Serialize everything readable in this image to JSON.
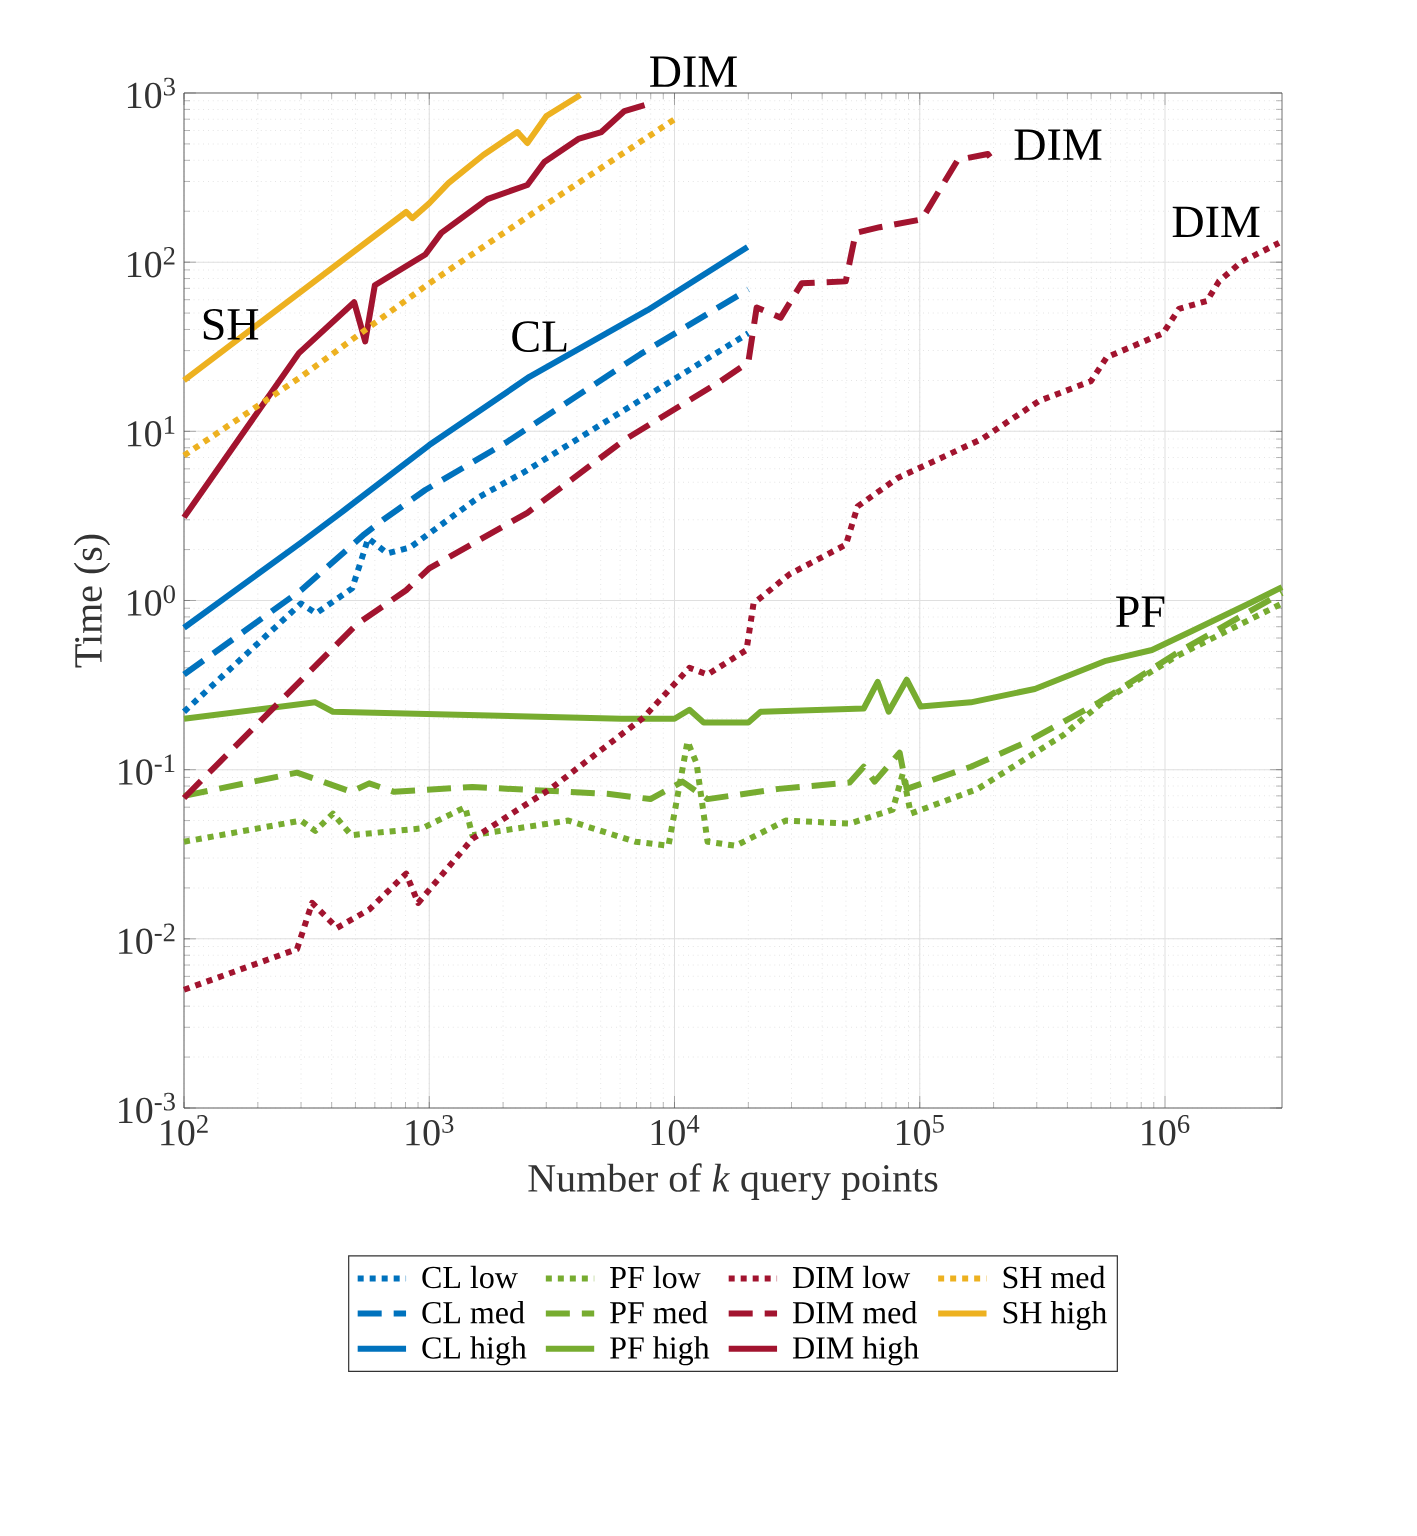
{
  "chart_data": {
    "type": "line",
    "xlabel": "Number of *k* query points",
    "ylabel": "Time (s)",
    "log": "xy",
    "grid": true,
    "legend": "bottom",
    "marker": "none",
    "xlim": [
      100,
      3000000
    ],
    "ylim": [
      0.001,
      1000
    ],
    "xticks": [
      {
        "value": 100,
        "label": "10$^{2}$"
      },
      {
        "value": 1000,
        "label": "10$^{3}$"
      },
      {
        "value": 10000,
        "label": "10$^{4}$"
      },
      {
        "value": 100000,
        "label": "10$^{5}$"
      },
      {
        "value": 1000000,
        "label": "10$^{6}$"
      }
    ],
    "yticks": [
      {
        "value": 0.001,
        "label": "10$^{-3}$"
      },
      {
        "value": 0.01,
        "label": "10$^{-2}$"
      },
      {
        "value": 0.1,
        "label": "10$^{-1}$"
      },
      {
        "value": 1,
        "label": "10$^{0}$"
      },
      {
        "value": 10,
        "label": "10$^{1}$"
      },
      {
        "value": 100,
        "label": "10$^{2}$"
      },
      {
        "value": 1000,
        "label": "10$^{3}$"
      }
    ],
    "annotations": [
      "SH",
      "CL",
      "DIM",
      "DIM",
      "DIM",
      "PF"
    ],
    "series": [
      {
        "name": "CL low",
        "color": "#0072bd",
        "line_style": "dotted",
        "x": [
          100,
          300,
          346,
          485,
          564,
          674,
          836,
          1600,
          2466,
          20000
        ],
        "values": [
          0.22,
          0.96,
          0.84,
          1.18,
          2.33,
          1.9,
          2.06,
          4.1,
          5.8,
          38
        ]
      },
      {
        "name": "CL med",
        "color": "#0072bd",
        "line_style": "dashed",
        "x": [
          100,
          300,
          543,
          649,
          963,
          2061,
          7262,
          20000
        ],
        "values": [
          0.365,
          1.15,
          2.46,
          3.0,
          4.5,
          8.6,
          28.6,
          69
        ]
      },
      {
        "name": "CL high",
        "color": "#0072bd",
        "line_style": "solid",
        "x": [
          100,
          300,
          454,
          1000,
          2560,
          7760,
          19860
        ],
        "values": [
          0.69,
          2.2,
          3.45,
          8.3,
          21,
          52,
          123
        ]
      },
      {
        "name": "PF low",
        "color": "#77ac30",
        "line_style": "dotted",
        "x": [
          100,
          300,
          343,
          405,
          481,
          935,
          1402,
          1499,
          3690,
          6930,
          9450,
          11300,
          12300,
          13640,
          17740,
          28400,
          51800,
          77600,
          85300,
          91900,
          172500,
          387000,
          574000,
          1119000,
          3000000
        ],
        "values": [
          0.0375,
          0.05,
          0.0435,
          0.055,
          0.041,
          0.045,
          0.06,
          0.041,
          0.05,
          0.0375,
          0.0355,
          0.147,
          0.109,
          0.0375,
          0.0355,
          0.05,
          0.048,
          0.058,
          0.095,
          0.055,
          0.077,
          0.161,
          0.26,
          0.47,
          0.96
        ]
      },
      {
        "name": "PF med",
        "color": "#77ac30",
        "line_style": "dashed",
        "x": [
          100,
          289,
          481,
          569,
          719,
          1499,
          5330,
          7980,
          10780,
          13640,
          26570,
          51800,
          59100,
          65500,
          82800,
          88500,
          161600,
          276000,
          538000,
          1119000,
          3000000
        ],
        "values": [
          0.07,
          0.096,
          0.074,
          0.083,
          0.074,
          0.079,
          0.072,
          0.067,
          0.085,
          0.067,
          0.077,
          0.084,
          0.104,
          0.085,
          0.126,
          0.077,
          0.104,
          0.147,
          0.25,
          0.49,
          1.11
        ]
      },
      {
        "name": "PF high",
        "color": "#77ac30",
        "line_style": "solid",
        "x": [
          100,
          343,
          405,
          6080,
          10000,
          11510,
          13150,
          20000,
          22440,
          59100,
          67400,
          74700,
          88500,
          100900,
          161600,
          294600,
          574000,
          885000,
          1288000,
          2203000,
          3000000
        ],
        "values": [
          0.2,
          0.25,
          0.22,
          0.2,
          0.2,
          0.226,
          0.19,
          0.19,
          0.22,
          0.23,
          0.33,
          0.22,
          0.34,
          0.236,
          0.25,
          0.3,
          0.44,
          0.51,
          0.66,
          0.96,
          1.2
        ]
      },
      {
        "name": "DIM low",
        "color": "#a2142f",
        "line_style": "dotted",
        "x": [
          100,
          289,
          333,
          421,
          569,
          805,
          901,
          1499,
          3119,
          7470,
          11510,
          13640,
          19670,
          21000,
          29460,
          50000,
          55800,
          81300,
          179000,
          306000,
          499000,
          579000,
          982000,
          1140000,
          1483000,
          1660000,
          2042000,
          2917000
        ],
        "values": [
          0.005,
          0.0087,
          0.0163,
          0.0116,
          0.0149,
          0.0243,
          0.0163,
          0.039,
          0.077,
          0.203,
          0.4,
          0.365,
          0.51,
          0.96,
          1.43,
          2.14,
          3.6,
          5.3,
          9.0,
          15.1,
          19.8,
          27.4,
          38,
          53,
          59,
          77,
          100,
          130
        ]
      },
      {
        "name": "DIM med",
        "color": "#a2142f",
        "line_style": "dashed",
        "x": [
          100,
          504,
          805,
          1000,
          2512,
          6250,
          15410,
          20000,
          21630,
          27100,
          33000,
          49900,
          54800,
          68700,
          101900,
          142900,
          189500,
          200000
        ],
        "values": [
          0.068,
          0.72,
          1.15,
          1.55,
          3.3,
          8.9,
          19.8,
          25.6,
          54,
          47,
          75,
          77,
          149,
          161,
          179,
          402,
          436,
          391
        ]
      },
      {
        "name": "DIM high",
        "color": "#a2142f",
        "line_style": "solid",
        "x": [
          100,
          294,
          494,
          548,
          600,
          964,
          1120,
          1725,
          2512,
          2946,
          4055,
          5035,
          6250,
          7550
        ],
        "values": [
          3.1,
          29,
          58,
          34,
          73,
          111,
          149,
          236,
          286,
          391,
          535,
          588,
          782,
          849
        ]
      },
      {
        "name": "SH med",
        "color": "#edb120",
        "line_style": "dotted",
        "x": [
          100,
          300,
          1000,
          3000,
          10000
        ],
        "values": [
          7.2,
          21,
          75,
          220,
          700
        ]
      },
      {
        "name": "SH high",
        "color": "#edb120",
        "line_style": "solid",
        "x": [
          100,
          300,
          805,
          853,
          1000,
          1197,
          1661,
          2286,
          2512,
          3005,
          4130
        ],
        "values": [
          20,
          67,
          198,
          182,
          223,
          293,
          430,
          588,
          506,
          731,
          973
        ]
      }
    ]
  }
}
